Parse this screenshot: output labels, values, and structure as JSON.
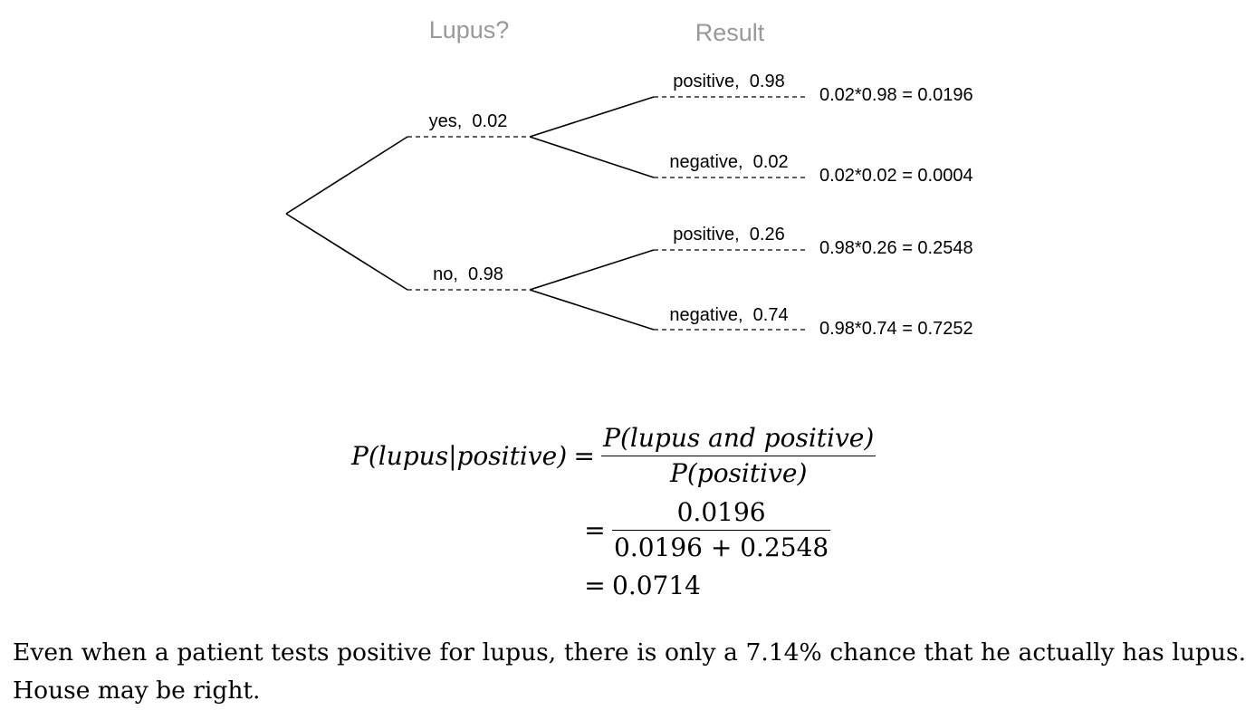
{
  "tree": {
    "headers": {
      "first": "Lupus?",
      "second": "Result"
    },
    "level1": [
      {
        "label": "yes,  0.02"
      },
      {
        "label": "no,  0.98"
      }
    ],
    "level2": [
      {
        "label": "positive,  0.98",
        "product": "0.02*0.98 = 0.0196"
      },
      {
        "label": "negative,  0.02",
        "product": "0.02*0.02 = 0.0004"
      },
      {
        "label": "positive,  0.26",
        "product": "0.98*0.26 = 0.2548"
      },
      {
        "label": "negative,  0.74",
        "product": "0.98*0.74 = 0.7252"
      }
    ]
  },
  "formula": {
    "lhs": "P(lupus|positive)",
    "step1_numerator": "P(lupus and positive)",
    "step1_denominator": "P(positive)",
    "step2_numerator": "0.0196",
    "step2_denominator": "0.0196 + 0.2548",
    "result": "0.0714",
    "equals": "="
  },
  "conclusion": "Even when a patient tests positive for lupus, there is only a 7.14% chance that he actually has lupus. House may be right."
}
